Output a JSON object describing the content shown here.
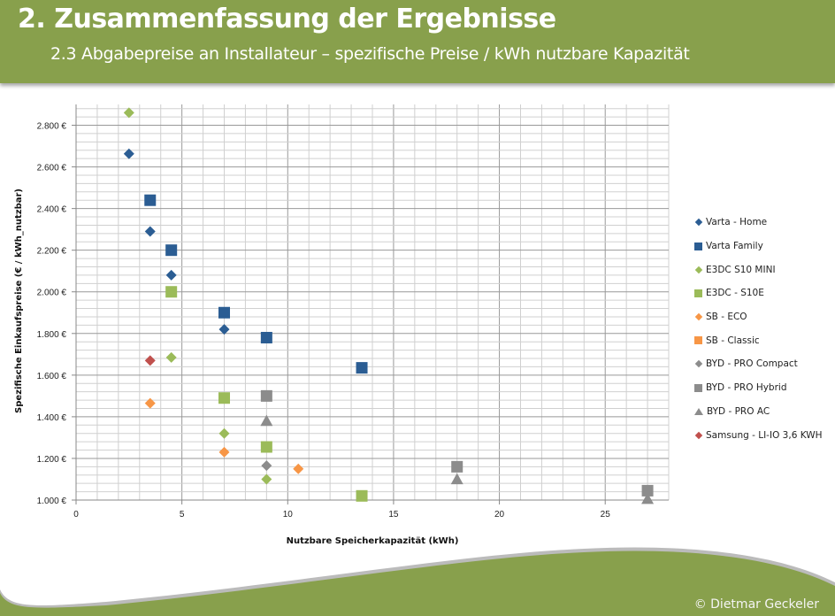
{
  "header": {
    "title": "2.  Zusammenfassung der Ergebnisse",
    "subtitle": "2.3 Abgabepreise an Installateur – spezifische Preise / kWh nutzbare Kapazität"
  },
  "footer": {
    "copyright": "© Dietmar Geckeler"
  },
  "colors": {
    "header_green": "#88a04c",
    "blue": "#2b5d93",
    "green": "#9bbb59",
    "orange": "#f79646",
    "gray": "#8c8c8c",
    "red": "#c0504d"
  },
  "chart_data": {
    "type": "scatter",
    "title": "",
    "xlabel": "Nutzbare Speicherkapazität (kWh)",
    "ylabel": "Spezifische Einkaufspreise (€ / kWh_nutzbar)",
    "xlim": [
      0,
      28
    ],
    "ylim": [
      1000,
      2900
    ],
    "x_ticks": [
      0,
      5,
      10,
      15,
      20,
      25
    ],
    "x_tick_labels": [
      "0",
      "5",
      "10",
      "15",
      "20",
      "25"
    ],
    "y_ticks": [
      1000,
      1200,
      1400,
      1600,
      1800,
      2000,
      2200,
      2400,
      2600,
      2800
    ],
    "y_tick_labels": [
      "1.000 €",
      "1.200 €",
      "1.400 €",
      "1.600 €",
      "1.800 €",
      "2.000 €",
      "2.200 €",
      "2.400 €",
      "2.600 €",
      "2.800 €"
    ],
    "grid": true,
    "legend_position": "right",
    "series": [
      {
        "name": "Varta - Home",
        "marker": "diamond",
        "color": "#2b5d93",
        "points": [
          [
            2.5,
            2663
          ],
          [
            3.5,
            2290
          ],
          [
            4.5,
            2080
          ],
          [
            7,
            1820
          ]
        ]
      },
      {
        "name": "Varta Family",
        "marker": "square",
        "color": "#2b5d93",
        "points": [
          [
            3.5,
            2440
          ],
          [
            4.5,
            2200
          ],
          [
            7,
            1900
          ],
          [
            9,
            1780
          ],
          [
            13.5,
            1635
          ]
        ]
      },
      {
        "name": "E3DC S10 MINI",
        "marker": "diamond",
        "color": "#9bbb59",
        "points": [
          [
            2.5,
            2860
          ],
          [
            4.5,
            1685
          ],
          [
            7,
            1320
          ],
          [
            9,
            1100
          ]
        ]
      },
      {
        "name": "E3DC - S10E",
        "marker": "square",
        "color": "#9bbb59",
        "points": [
          [
            4.5,
            2000
          ],
          [
            7,
            1490
          ],
          [
            9,
            1255
          ],
          [
            13.5,
            1020
          ]
        ]
      },
      {
        "name": "SB - ECO",
        "marker": "diamond",
        "color": "#f79646",
        "points": [
          [
            3.5,
            1465
          ],
          [
            7,
            1230
          ],
          [
            10.5,
            1150
          ]
        ]
      },
      {
        "name": "SB - Classic",
        "marker": "square",
        "color": "#f79646",
        "points": []
      },
      {
        "name": "BYD - PRO Compact",
        "marker": "diamond",
        "color": "#8c8c8c",
        "points": [
          [
            9,
            1165
          ]
        ]
      },
      {
        "name": "BYD - PRO Hybrid",
        "marker": "square",
        "color": "#8c8c8c",
        "points": [
          [
            9,
            1500
          ],
          [
            18,
            1160
          ],
          [
            27,
            1045
          ]
        ]
      },
      {
        "name": "BYD - PRO AC",
        "marker": "triangle",
        "color": "#8c8c8c",
        "points": [
          [
            9,
            1380
          ],
          [
            18,
            1100
          ],
          [
            27,
            1005
          ]
        ]
      },
      {
        "name": "Samsung - LI-IO 3,6 KWH",
        "marker": "diamond",
        "color": "#c0504d",
        "points": [
          [
            3.5,
            1670
          ]
        ]
      }
    ]
  }
}
